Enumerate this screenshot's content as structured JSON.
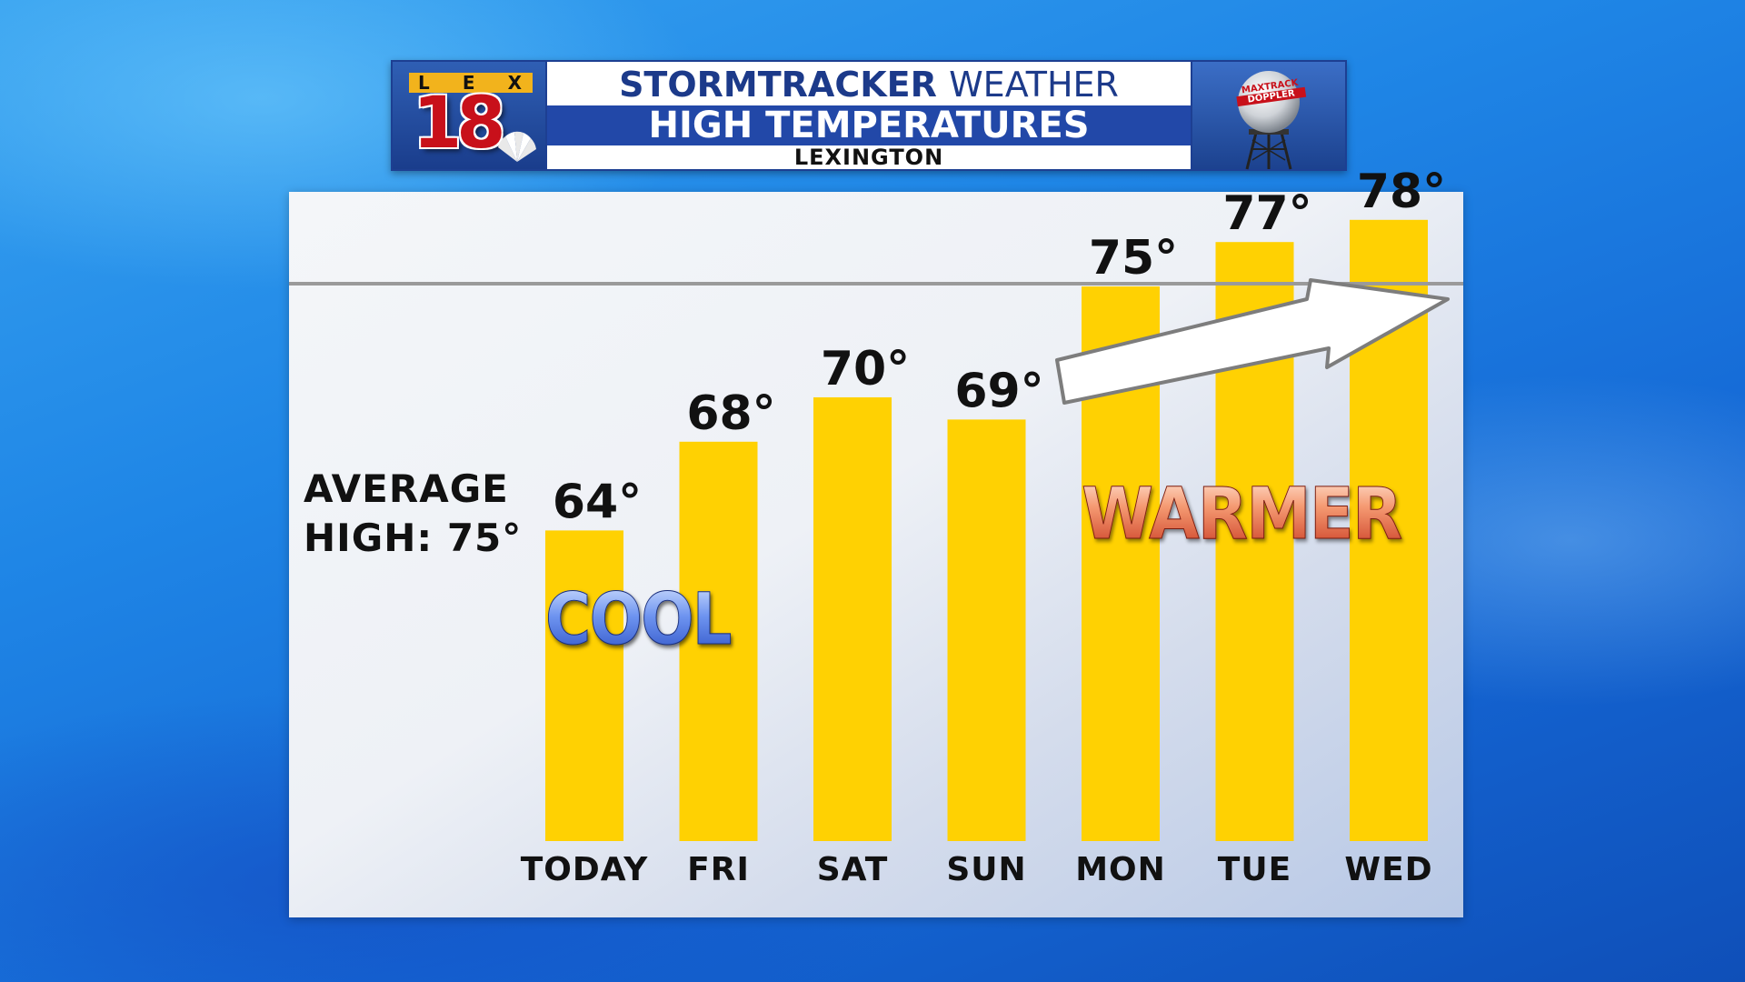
{
  "header": {
    "logo": {
      "letters": [
        "L",
        "E",
        "X"
      ],
      "number": "18"
    },
    "title_part1": "STORMTRACKER",
    "title_part2": "WEATHER",
    "subtitle": "HIGH TEMPERATURES",
    "location": "LEXINGTON",
    "radar_badge": [
      "MAXTRACK",
      "DOPPLER"
    ]
  },
  "annotations": {
    "average_label_line1": "AVERAGE",
    "average_label_line2": "HIGH: 75°",
    "cool": "COOL",
    "warmer": "WARMER"
  },
  "colors": {
    "bar": "#ffd102",
    "average_line": "#9a9a9a",
    "header_blue": "#2248a8",
    "logo_red": "#c8101a"
  },
  "chart_data": {
    "type": "bar",
    "title": "HIGH TEMPERATURES",
    "categories": [
      "TODAY",
      "FRI",
      "SAT",
      "SUN",
      "MON",
      "TUE",
      "WED"
    ],
    "values": [
      64,
      68,
      70,
      69,
      75,
      77,
      78
    ],
    "value_labels": [
      "64°",
      "68°",
      "70°",
      "69°",
      "75°",
      "77°",
      "78°"
    ],
    "reference_line": {
      "value": 75,
      "label": "AVERAGE HIGH: 75°"
    },
    "ylim": [
      50,
      85
    ],
    "grid": false,
    "legend": "none",
    "trend_arrow": "up-right"
  }
}
